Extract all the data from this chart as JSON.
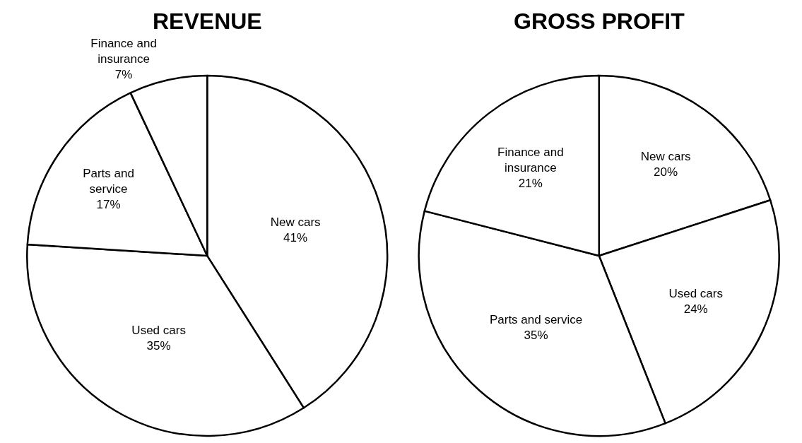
{
  "chart_data": [
    {
      "type": "pie",
      "title": "REVENUE",
      "categories": [
        "New cars",
        "Used cars",
        "Parts and service",
        "Finance and insurance"
      ],
      "values": [
        41,
        35,
        17,
        7
      ],
      "value_labels": [
        "41%",
        "35%",
        "17%",
        "7%"
      ],
      "colors": [
        "#ffffff",
        "#ffffff",
        "#ffffff",
        "#ffffff"
      ],
      "legend": false
    },
    {
      "type": "pie",
      "title": "GROSS PROFIT",
      "categories": [
        "New cars",
        "Used cars",
        "Parts and service",
        "Finance and insurance"
      ],
      "values": [
        20,
        24,
        35,
        21
      ],
      "value_labels": [
        "20%",
        "24%",
        "35%",
        "21%"
      ],
      "colors": [
        "#ffffff",
        "#ffffff",
        "#ffffff",
        "#ffffff"
      ],
      "legend": false
    }
  ]
}
